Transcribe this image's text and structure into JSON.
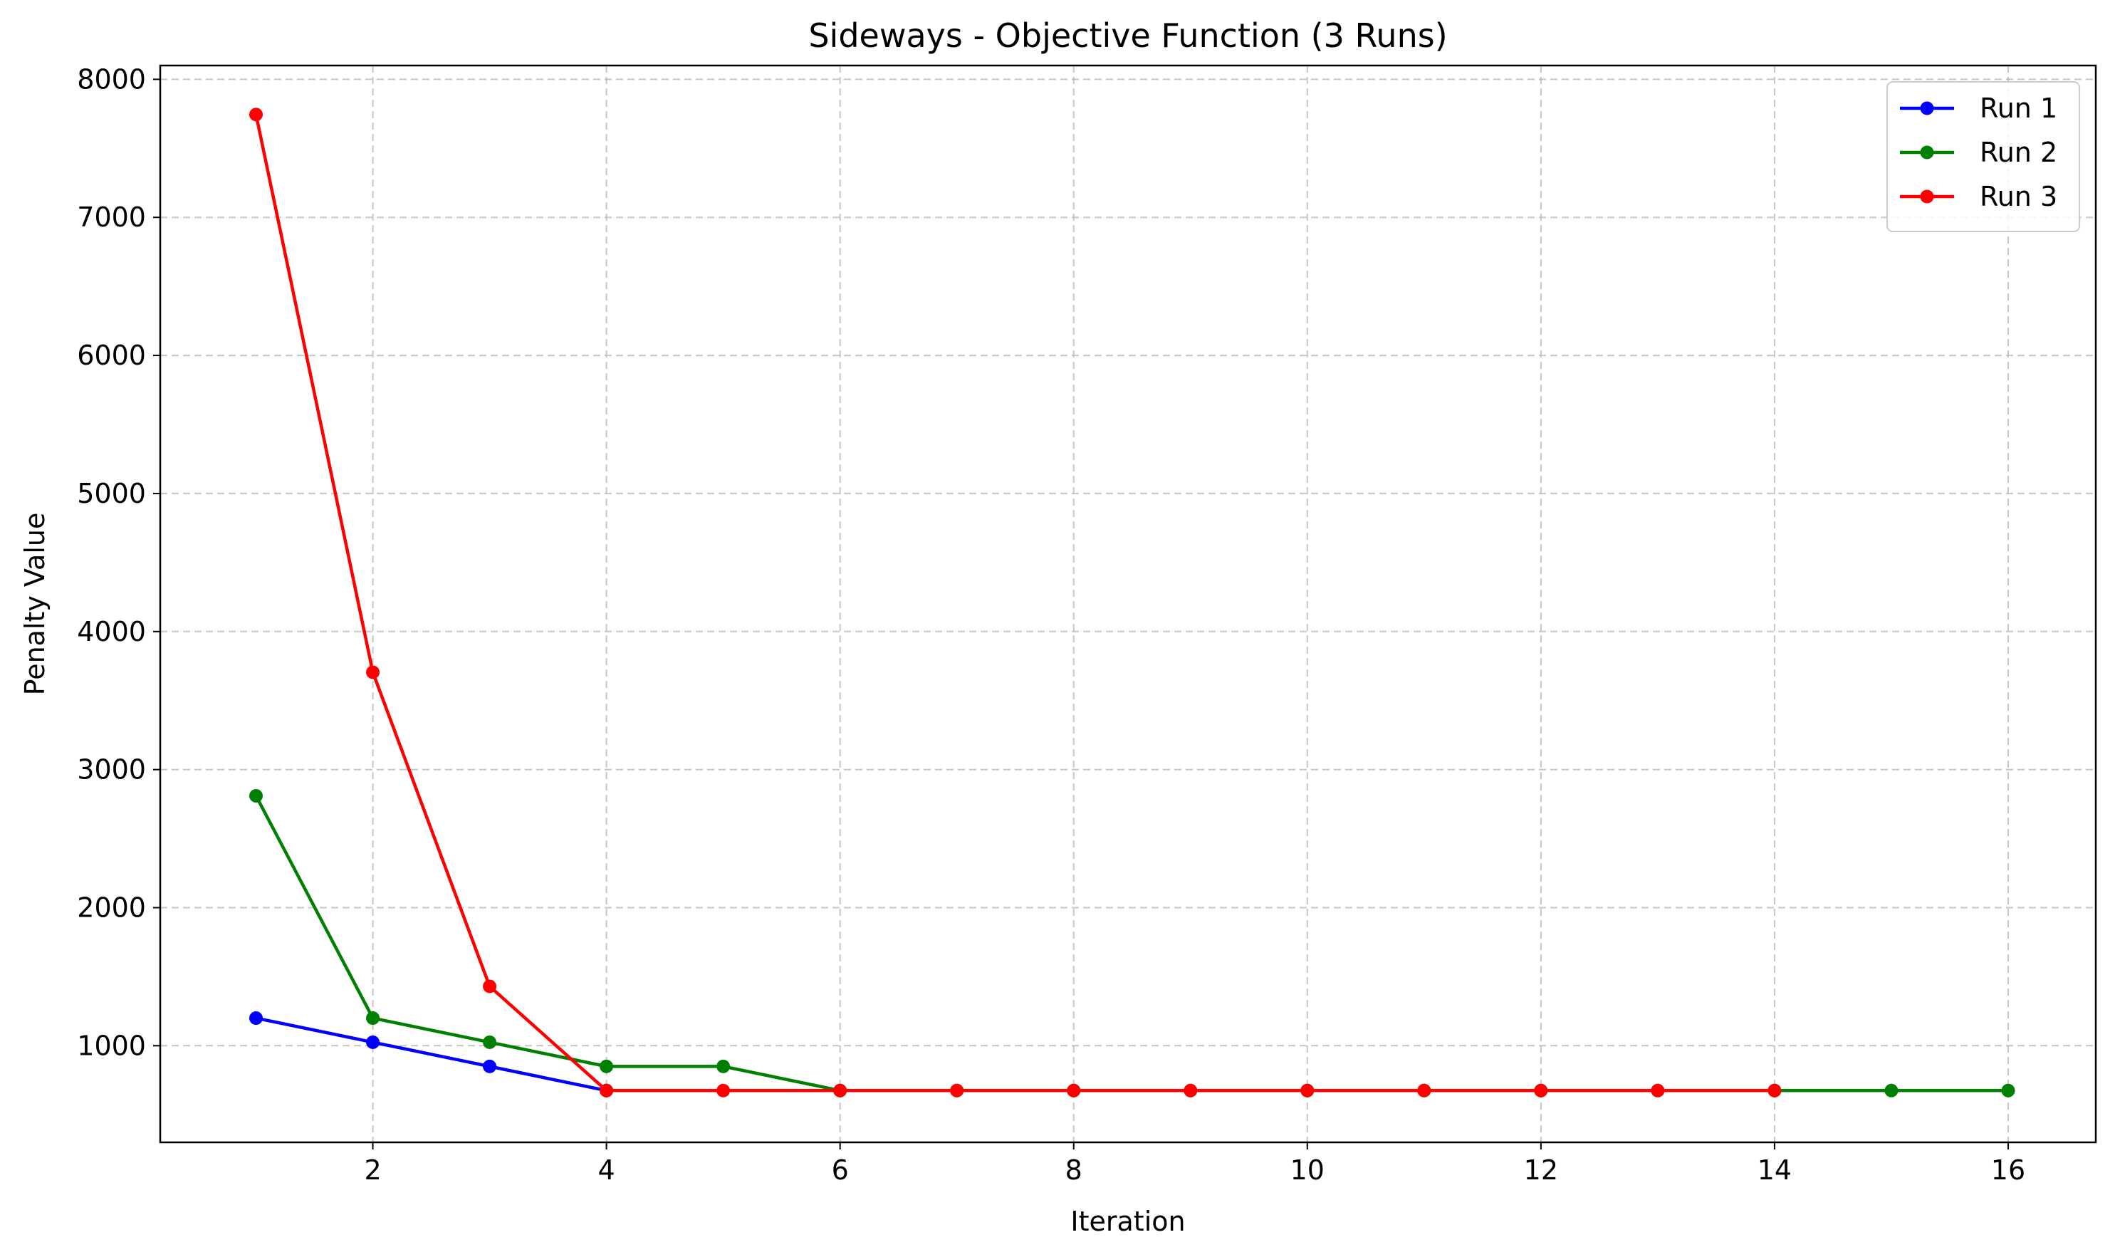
{
  "chart_data": {
    "type": "line",
    "title": "Sideways - Objective Function (3 Runs)",
    "xlabel": "Iteration",
    "ylabel": "Penalty Value",
    "xlim": [
      0.18,
      16.75
    ],
    "ylim": [
      300,
      8100
    ],
    "xticks": [
      2,
      4,
      6,
      8,
      10,
      12,
      14,
      16
    ],
    "yticks": [
      1000,
      2000,
      3000,
      4000,
      5000,
      6000,
      7000,
      8000
    ],
    "grid": true,
    "legend_position": "top-right",
    "series": [
      {
        "name": "Run 1",
        "color": "#0000ff",
        "x": [
          1,
          2,
          3,
          4
        ],
        "y": [
          1200,
          1025,
          850,
          675
        ]
      },
      {
        "name": "Run 2",
        "color": "#008000",
        "x": [
          1,
          2,
          3,
          4,
          5,
          6,
          7,
          8,
          9,
          10,
          11,
          12,
          13,
          14,
          15,
          16
        ],
        "y": [
          2810,
          1200,
          1025,
          850,
          850,
          675,
          675,
          675,
          675,
          675,
          675,
          675,
          675,
          675,
          675,
          675
        ]
      },
      {
        "name": "Run 3",
        "color": "#ff0000",
        "x": [
          1,
          2,
          3,
          4,
          5,
          6,
          7,
          8,
          9,
          10,
          11,
          12,
          13,
          14
        ],
        "y": [
          7745,
          3705,
          1430,
          675,
          675,
          675,
          675,
          675,
          675,
          675,
          675,
          675,
          675,
          675
        ]
      }
    ]
  }
}
